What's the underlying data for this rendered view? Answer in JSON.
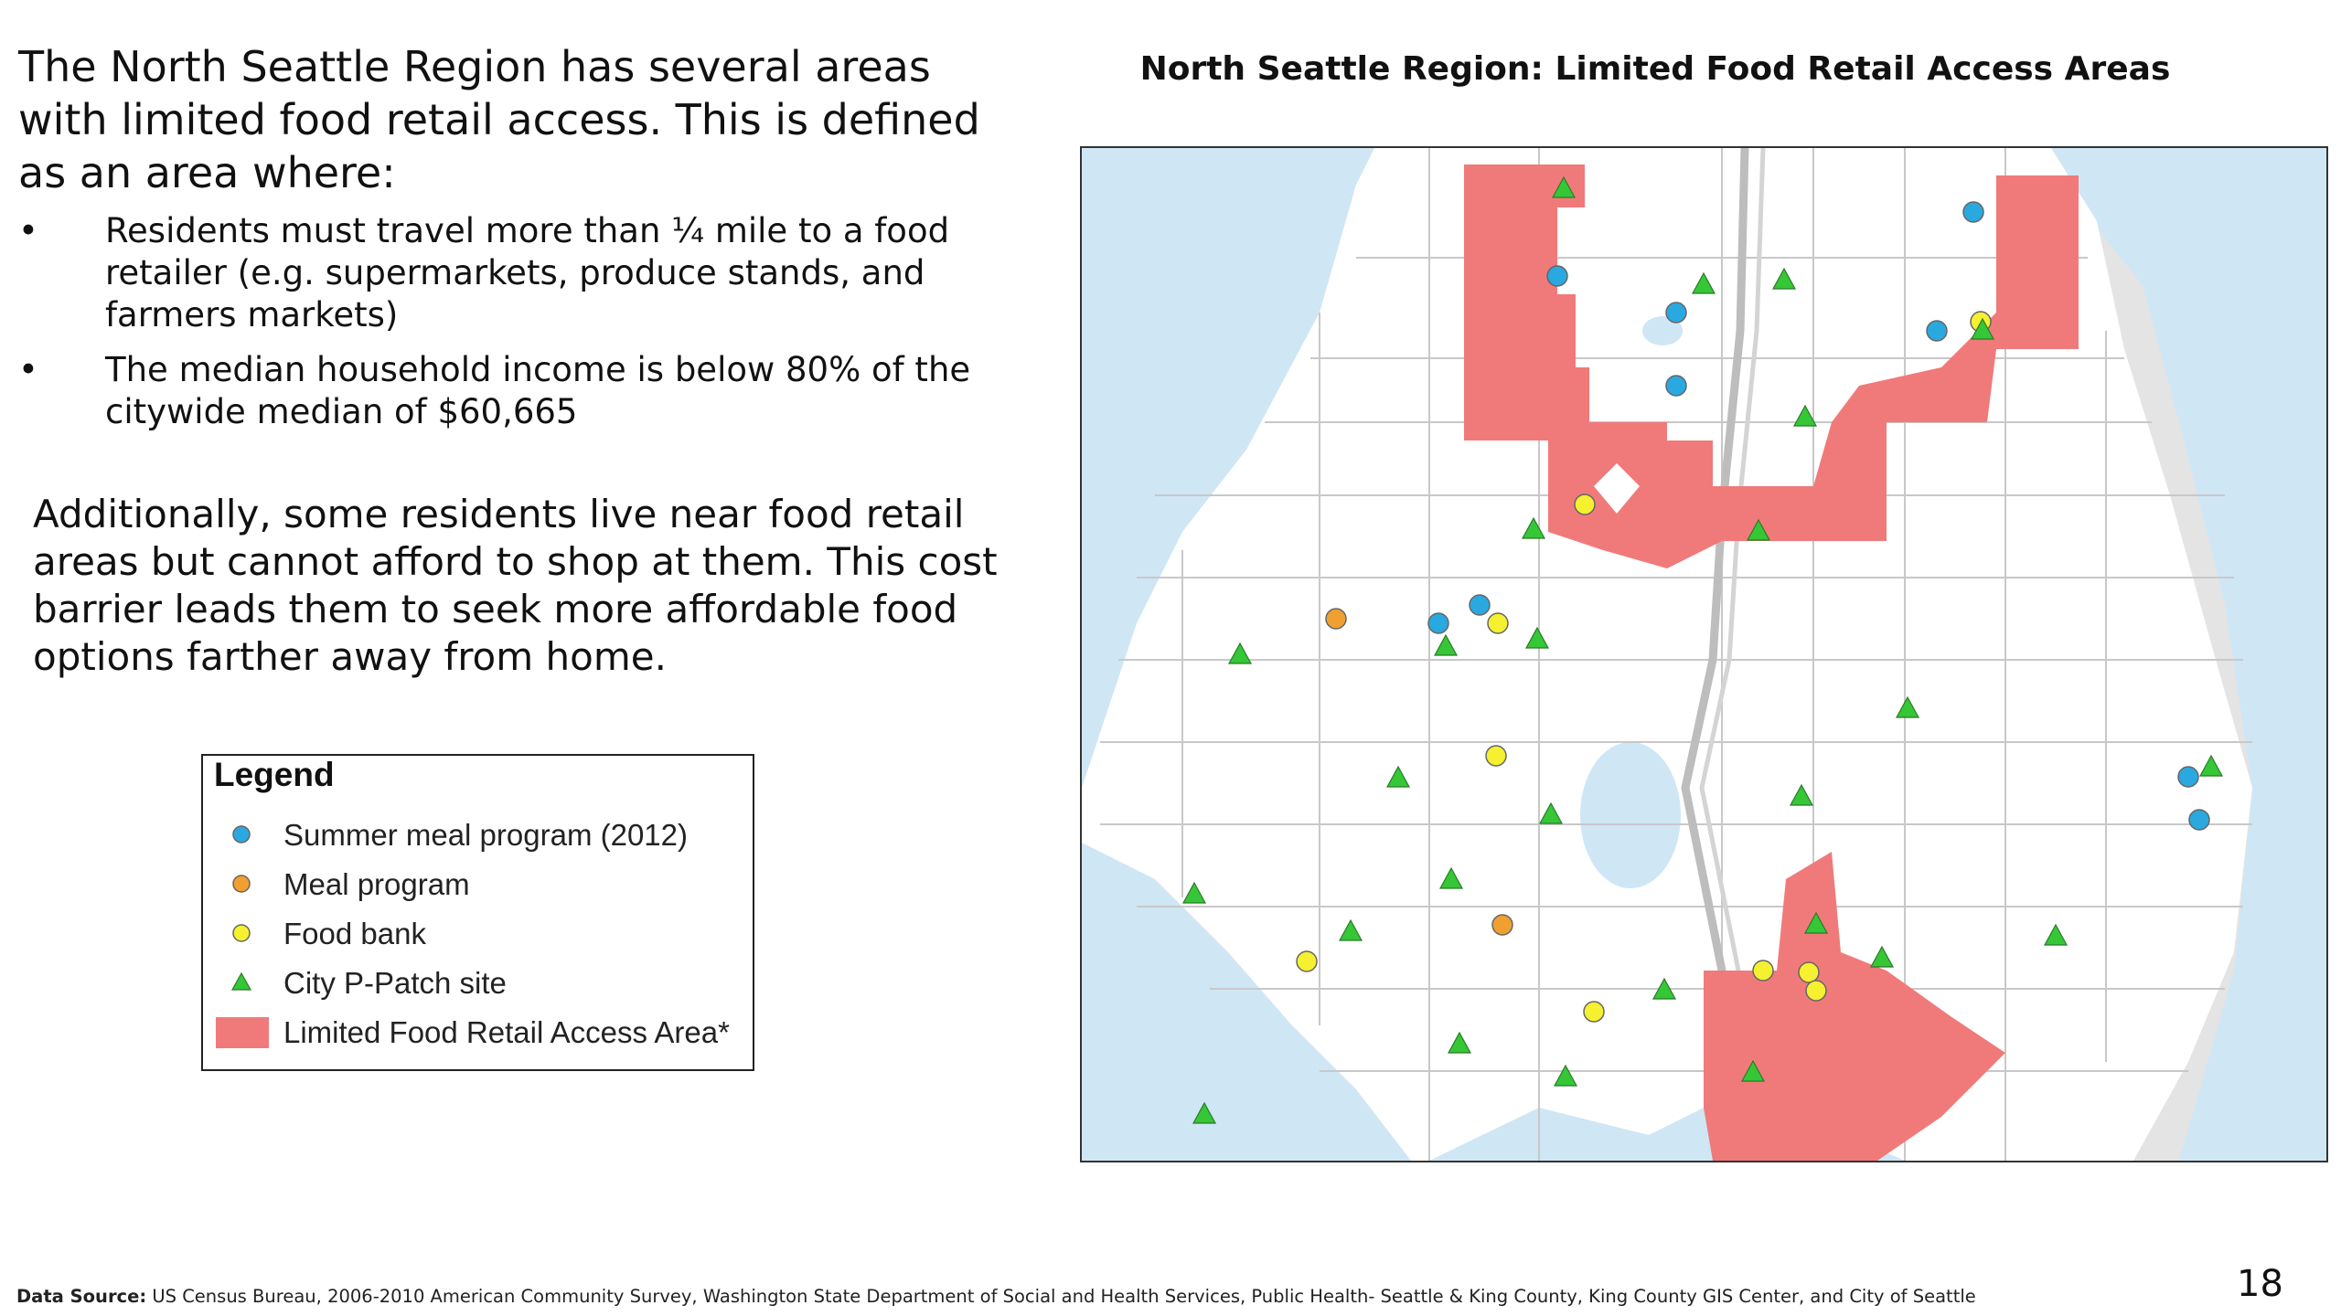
{
  "intro": "The North Seattle Region has several areas with limited food retail access. This is defined as an area where:",
  "bullets": [
    {
      "symbol": "•",
      "text": "Residents must travel more than ¼ mile to a food retailer (e.g. supermarkets, produce stands, and farmers markets)"
    },
    {
      "symbol": "•",
      "text": "The median household income is below 80% of the citywide median of $60,665"
    }
  ],
  "additional": "Additionally, some residents live near food retail areas but cannot afford to shop at them. This cost barrier leads them to seek more affordable food options farther away from home.",
  "legend": {
    "title": "Legend",
    "items": [
      {
        "label": "Summer meal program (2012)",
        "symbol": "circle",
        "color": "#29a9e0"
      },
      {
        "label": "Meal program",
        "symbol": "circle",
        "color": "#f0a030"
      },
      {
        "label": "Food bank",
        "symbol": "circle",
        "color": "#f5f030"
      },
      {
        "label": "City P-Patch site",
        "symbol": "triangle",
        "color": "#35c735"
      },
      {
        "label": "Limited Food Retail Access Area*",
        "symbol": "square",
        "color": "#f07a7a"
      }
    ]
  },
  "map": {
    "title": "North Seattle Region: Limited Food Retail Access Areas",
    "colors": {
      "land": "#ffffff",
      "water": "#cfe6f5",
      "outside": "#e4e4e4",
      "limited_area": "#f07a7a",
      "roads": "#c8c8c8"
    }
  },
  "source": {
    "label": "Data Source:",
    "text": " US Census Bureau, 2006-2010 American Community Survey, Washington State Department of Social and Health Services, Public Health- Seattle & King County, King County GIS Center, and City of Seattle"
  },
  "page_number": "18"
}
